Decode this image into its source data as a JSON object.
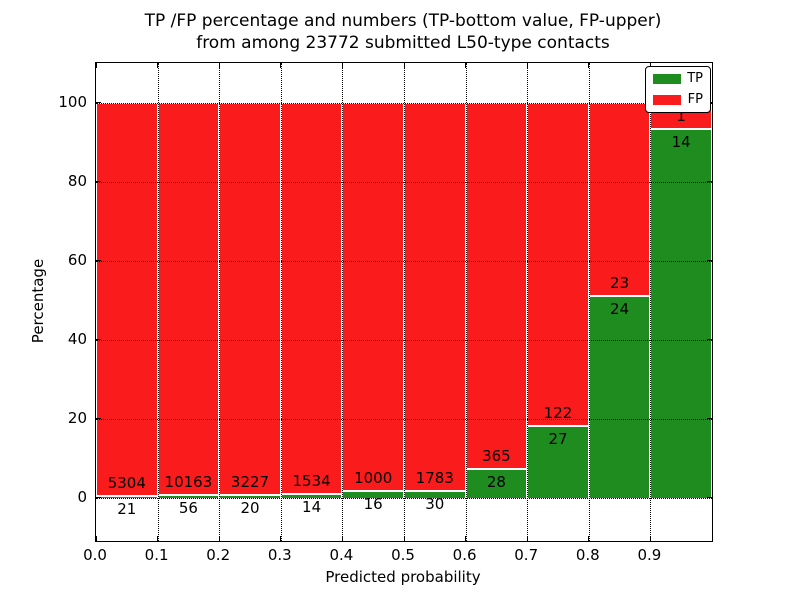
{
  "figure": {
    "title_line1": "TP /FP percentage and numbers (TP-bottom value, FP-upper)",
    "title_line2": "from among 23772 submitted L50-type contacts"
  },
  "chart_data": {
    "type": "bar",
    "variant": "stacked-percentage",
    "title": "TP /FP percentage and numbers (TP-bottom value, FP-upper) from among 23772 submitted L50-type contacts",
    "xlabel": "Predicted probability",
    "ylabel": "Percentage",
    "total_contacts": 23772,
    "categories": [
      "0.0-0.1",
      "0.1-0.2",
      "0.2-0.3",
      "0.3-0.4",
      "0.4-0.5",
      "0.5-0.6",
      "0.6-0.7",
      "0.7-0.8",
      "0.8-0.9",
      "0.9-1.0"
    ],
    "series": [
      {
        "name": "TP",
        "color": "#1e8c1e",
        "values": [
          21,
          56,
          20,
          14,
          16,
          30,
          28,
          27,
          24,
          14
        ]
      },
      {
        "name": "FP",
        "color": "#fa1c1c",
        "values": [
          5304,
          10163,
          3227,
          1534,
          1000,
          1783,
          365,
          122,
          23,
          1
        ]
      }
    ],
    "bar_label_rule": "FP count shown above TP/FP boundary, TP count shown below boundary",
    "xticks": [
      "0.0",
      "0.1",
      "0.2",
      "0.3",
      "0.4",
      "0.5",
      "0.6",
      "0.7",
      "0.8",
      "0.9"
    ],
    "yticks": [
      0,
      20,
      40,
      60,
      80,
      100
    ],
    "xlim": [
      0.0,
      1.0
    ],
    "ylim": [
      -11,
      110
    ],
    "grid": true,
    "grid_style": "dotted",
    "legend": {
      "position": "upper right",
      "entries": [
        {
          "label": "TP",
          "color": "#1e8c1e"
        },
        {
          "label": "FP",
          "color": "#fa1c1c"
        }
      ]
    }
  }
}
